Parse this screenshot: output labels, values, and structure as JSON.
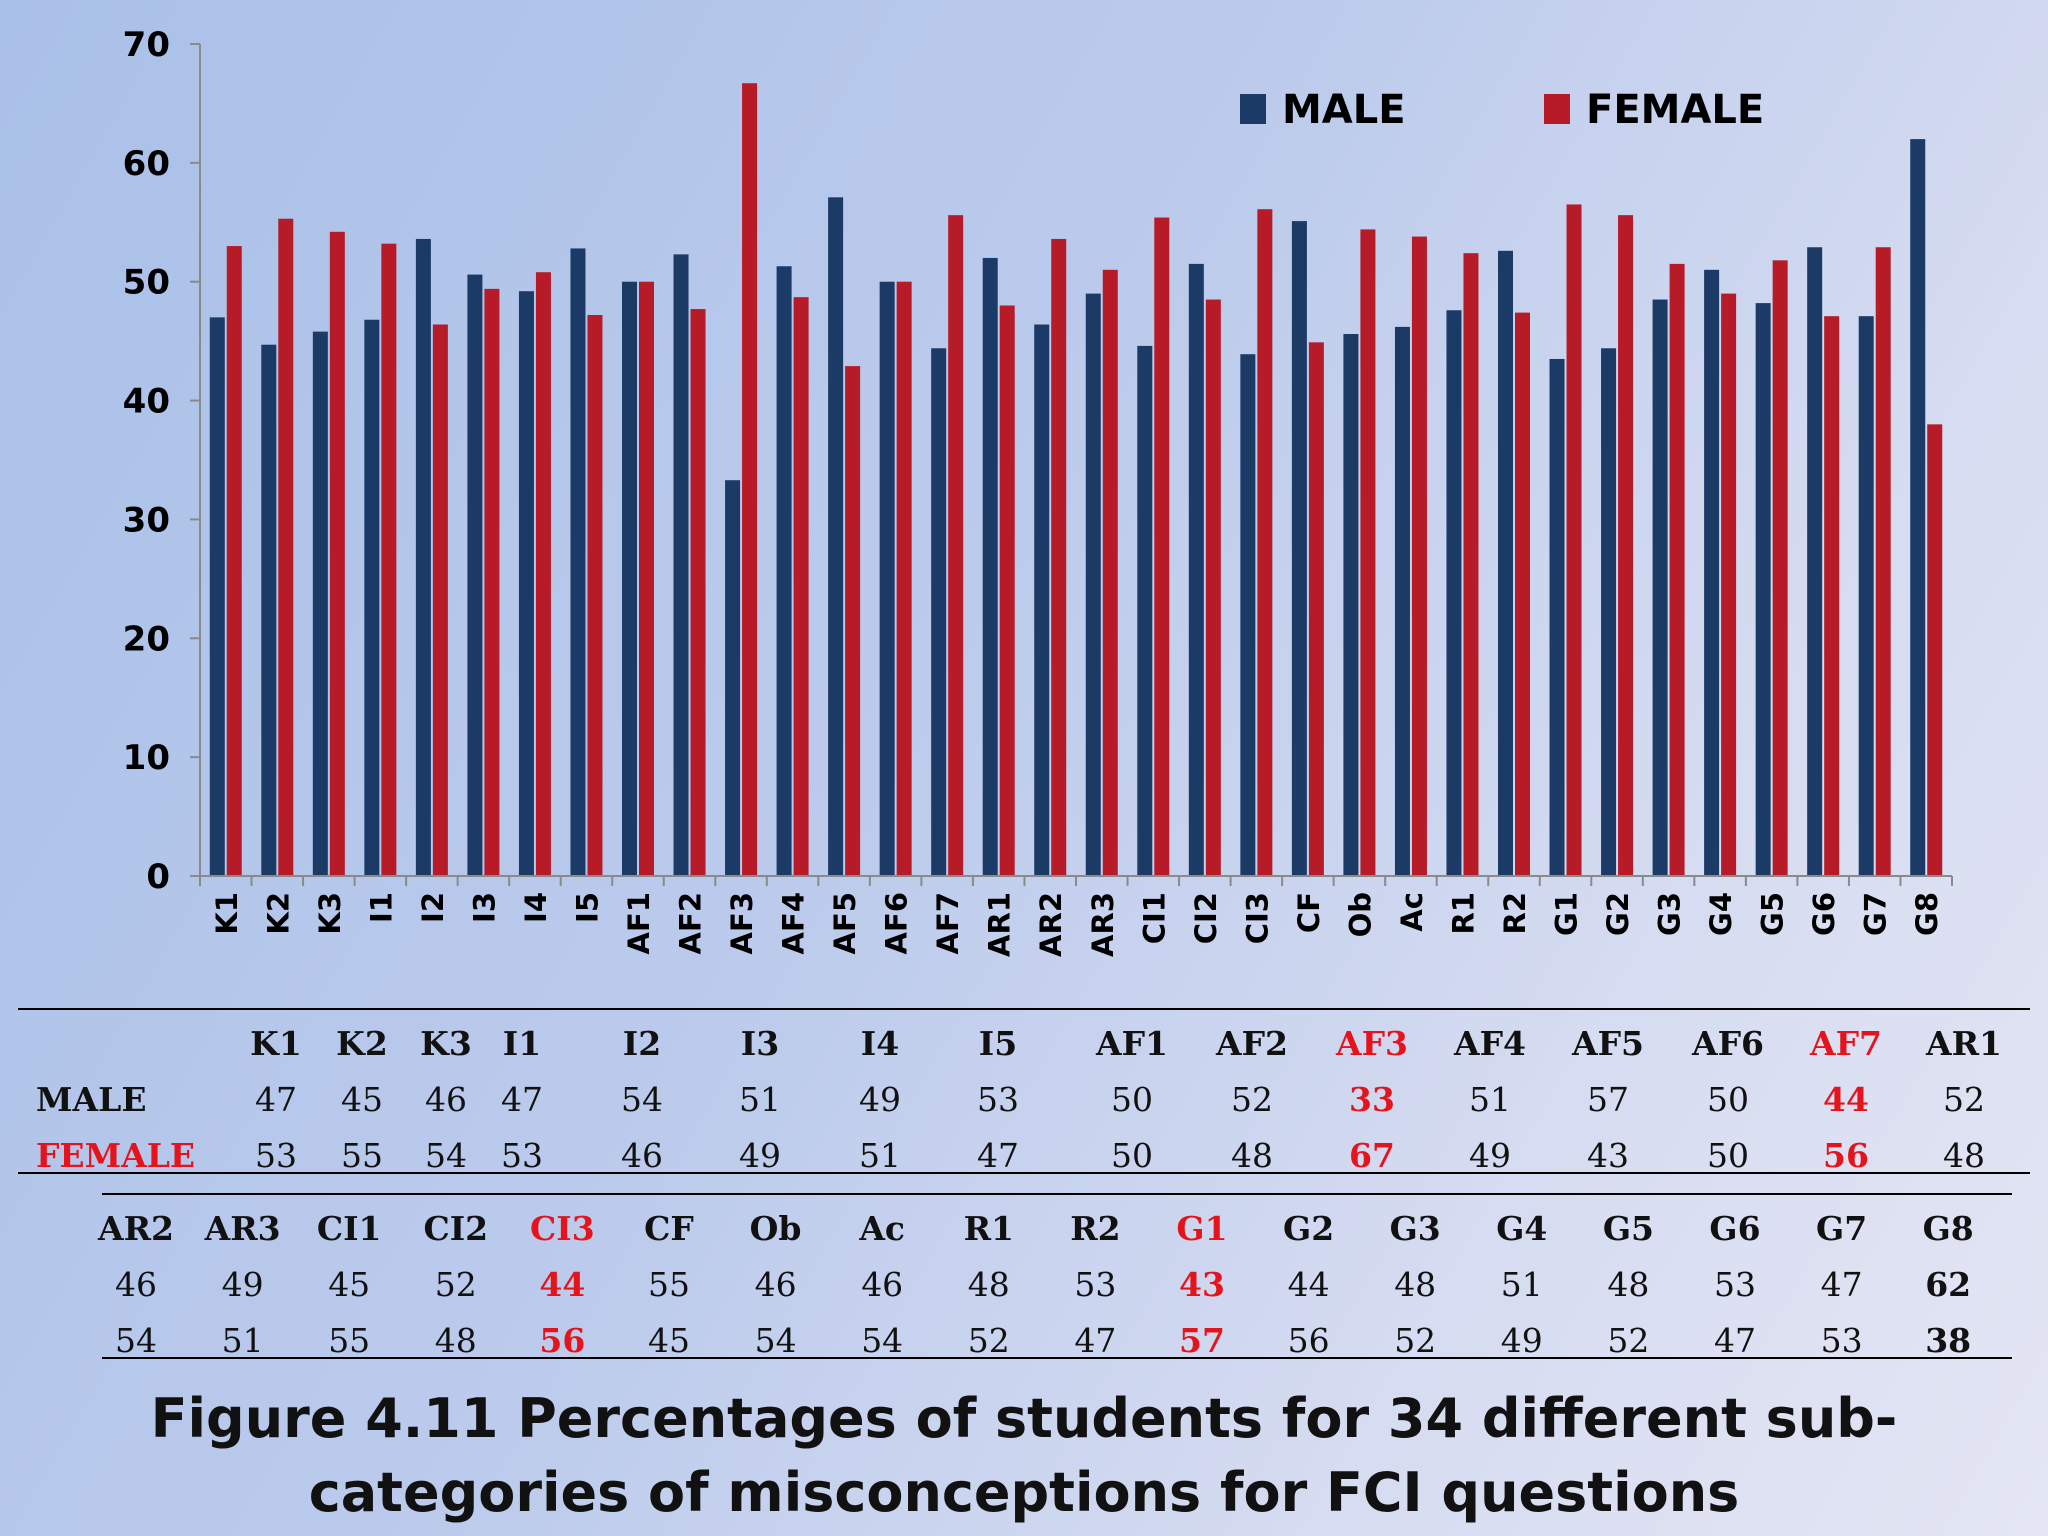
{
  "chart_data": {
    "type": "bar",
    "categories": [
      "K1",
      "K2",
      "K3",
      "I1",
      "I2",
      "I3",
      "I4",
      "I5",
      "AF1",
      "AF2",
      "AF3",
      "AF4",
      "AF5",
      "AF6",
      "AF7",
      "AR1",
      "AR2",
      "AR3",
      "CI1",
      "CI2",
      "CI3",
      "CF",
      "Ob",
      "Ac",
      "R1",
      "R2",
      "G1",
      "G2",
      "G3",
      "G4",
      "G5",
      "G6",
      "G7",
      "G8"
    ],
    "series": [
      {
        "name": "MALE",
        "color": "#1b3a66",
        "values": [
          47,
          44.7,
          45.8,
          46.8,
          53.6,
          50.6,
          49.2,
          52.8,
          50,
          52.3,
          33.3,
          51.3,
          57.1,
          50,
          44.4,
          52,
          46.4,
          49,
          44.6,
          51.5,
          43.9,
          55.1,
          45.6,
          46.2,
          47.6,
          52.6,
          43.5,
          44.4,
          48.5,
          51,
          48.2,
          52.9,
          47.1,
          62
        ]
      },
      {
        "name": "FEMALE",
        "color": "#b81b28",
        "values": [
          53,
          55.3,
          54.2,
          53.2,
          46.4,
          49.4,
          50.8,
          47.2,
          50,
          47.7,
          66.7,
          48.7,
          42.9,
          50,
          55.6,
          48,
          53.6,
          51,
          55.4,
          48.5,
          56.1,
          44.9,
          54.4,
          53.8,
          52.4,
          47.4,
          56.5,
          55.6,
          51.5,
          49,
          51.8,
          47.1,
          52.9,
          38
        ]
      }
    ],
    "y_ticks": [
      "0",
      "10",
      "20",
      "30",
      "40",
      "50",
      "60",
      "70"
    ],
    "ylim": [
      0,
      70
    ],
    "legend": {
      "position": "top-right",
      "items": [
        "MALE",
        "FEMALE"
      ]
    },
    "xlabel": "",
    "ylabel": "",
    "title": ""
  },
  "table1": {
    "headers": [
      "K1",
      "K2",
      "K3",
      "I1",
      "I2",
      "I3",
      "I4",
      "I5",
      "AF1",
      "AF2",
      "AF3",
      "AF4",
      "AF5",
      "AF6",
      "AF7",
      "AR1"
    ],
    "male_label": "MALE",
    "female_label": "FEMALE",
    "male": [
      "47",
      "45",
      "46",
      "47",
      "54",
      "51",
      "49",
      "53",
      "50",
      "52",
      "33",
      "51",
      "57",
      "50",
      "44",
      "52"
    ],
    "female": [
      "53",
      "55",
      "54",
      "53",
      "46",
      "49",
      "51",
      "47",
      "50",
      "48",
      "67",
      "49",
      "43",
      "50",
      "56",
      "48"
    ],
    "highlight_columns": [
      "AF3",
      "AF7"
    ]
  },
  "table2": {
    "headers": [
      "AR2",
      "AR3",
      "CI1",
      "CI2",
      "CI3",
      "CF",
      "Ob",
      "Ac",
      "R1",
      "R2",
      "G1",
      "G2",
      "G3",
      "G4",
      "G5",
      "G6",
      "G7",
      "G8"
    ],
    "male": [
      "46",
      "49",
      "45",
      "52",
      "44",
      "55",
      "46",
      "46",
      "48",
      "53",
      "43",
      "44",
      "48",
      "51",
      "48",
      "53",
      "47",
      "62"
    ],
    "female": [
      "54",
      "51",
      "55",
      "48",
      "56",
      "45",
      "54",
      "54",
      "52",
      "47",
      "57",
      "56",
      "52",
      "49",
      "52",
      "47",
      "53",
      "38"
    ],
    "highlight_columns": [
      "CI3",
      "G1"
    ],
    "bold_columns": [
      "G8"
    ]
  },
  "caption": {
    "line1": "Figure 4.11 Percentages of students for 34 different sub-",
    "line2": "categories of misconceptions for FCI questions"
  }
}
